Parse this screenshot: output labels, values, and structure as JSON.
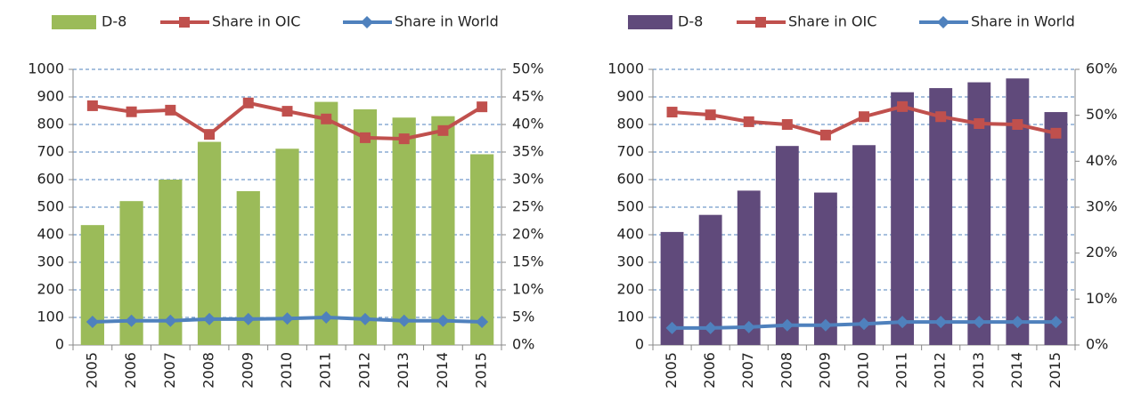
{
  "chart_data": [
    {
      "type": "combo",
      "categories": [
        "2005",
        "2006",
        "2007",
        "2008",
        "2009",
        "2010",
        "2011",
        "2012",
        "2013",
        "2014",
        "2015"
      ],
      "series": [
        {
          "name": "D-8",
          "type": "bar",
          "color": "#9bbb59",
          "values": [
            435,
            522,
            600,
            737,
            558,
            712,
            882,
            855,
            825,
            830,
            692
          ]
        },
        {
          "name": "Share in OIC",
          "type": "line",
          "marker": "square",
          "color": "#c0504d",
          "axis": "y2",
          "values": [
            43.4,
            42.3,
            42.6,
            38.2,
            43.9,
            42.4,
            41.0,
            37.6,
            37.4,
            38.9,
            43.2
          ]
        },
        {
          "name": "Share in World",
          "type": "line",
          "marker": "diamond",
          "color": "#4f81bd",
          "axis": "y2",
          "values": [
            4.2,
            4.4,
            4.4,
            4.7,
            4.7,
            4.8,
            5.0,
            4.7,
            4.4,
            4.4,
            4.2
          ]
        }
      ],
      "ylim": [
        0,
        1000
      ],
      "yticks": [
        0,
        100,
        200,
        300,
        400,
        500,
        600,
        700,
        800,
        900,
        1000
      ],
      "y2lim": [
        0,
        50
      ],
      "y2ticks": [
        {
          "value": 0,
          "label": "0%"
        },
        {
          "value": 5,
          "label": "5%"
        },
        {
          "value": 10,
          "label": "10%"
        },
        {
          "value": 15,
          "label": "15%"
        },
        {
          "value": 20,
          "label": "20%"
        },
        {
          "value": 25,
          "label": "25%"
        },
        {
          "value": 30,
          "label": "30%"
        },
        {
          "value": 35,
          "label": "35%"
        },
        {
          "value": 40,
          "label": "40%"
        },
        {
          "value": 45,
          "label": "45%"
        },
        {
          "value": 50,
          "label": "50%"
        }
      ],
      "grid": true,
      "legend": "top"
    },
    {
      "type": "combo",
      "categories": [
        "2005",
        "2006",
        "2007",
        "2008",
        "2009",
        "2010",
        "2011",
        "2012",
        "2013",
        "2014",
        "2015"
      ],
      "series": [
        {
          "name": "D-8",
          "type": "bar",
          "color": "#604a7b",
          "values": [
            410,
            472,
            560,
            722,
            553,
            725,
            917,
            932,
            953,
            967,
            845
          ]
        },
        {
          "name": "Share in OIC",
          "type": "line",
          "marker": "square",
          "color": "#c0504d",
          "axis": "y2",
          "values": [
            50.7,
            50.1,
            48.6,
            48.0,
            45.7,
            49.7,
            51.9,
            49.7,
            48.2,
            48.0,
            46.1
          ]
        },
        {
          "name": "Share in World",
          "type": "line",
          "marker": "diamond",
          "color": "#4f81bd",
          "axis": "y2",
          "values": [
            3.7,
            3.7,
            3.9,
            4.3,
            4.3,
            4.6,
            5.0,
            5.0,
            5.0,
            5.0,
            5.0
          ]
        }
      ],
      "ylim": [
        0,
        1000
      ],
      "yticks": [
        0,
        100,
        200,
        300,
        400,
        500,
        600,
        700,
        800,
        900,
        1000
      ],
      "y2lim": [
        0,
        60
      ],
      "y2ticks": [
        {
          "value": 0,
          "label": "0%"
        },
        {
          "value": 10,
          "label": "10%"
        },
        {
          "value": 20,
          "label": "20%"
        },
        {
          "value": 30,
          "label": "30%"
        },
        {
          "value": 40,
          "label": "40%"
        },
        {
          "value": 50,
          "label": "50%"
        },
        {
          "value": 60,
          "label": "60%"
        }
      ],
      "grid": true,
      "legend": "top"
    }
  ]
}
